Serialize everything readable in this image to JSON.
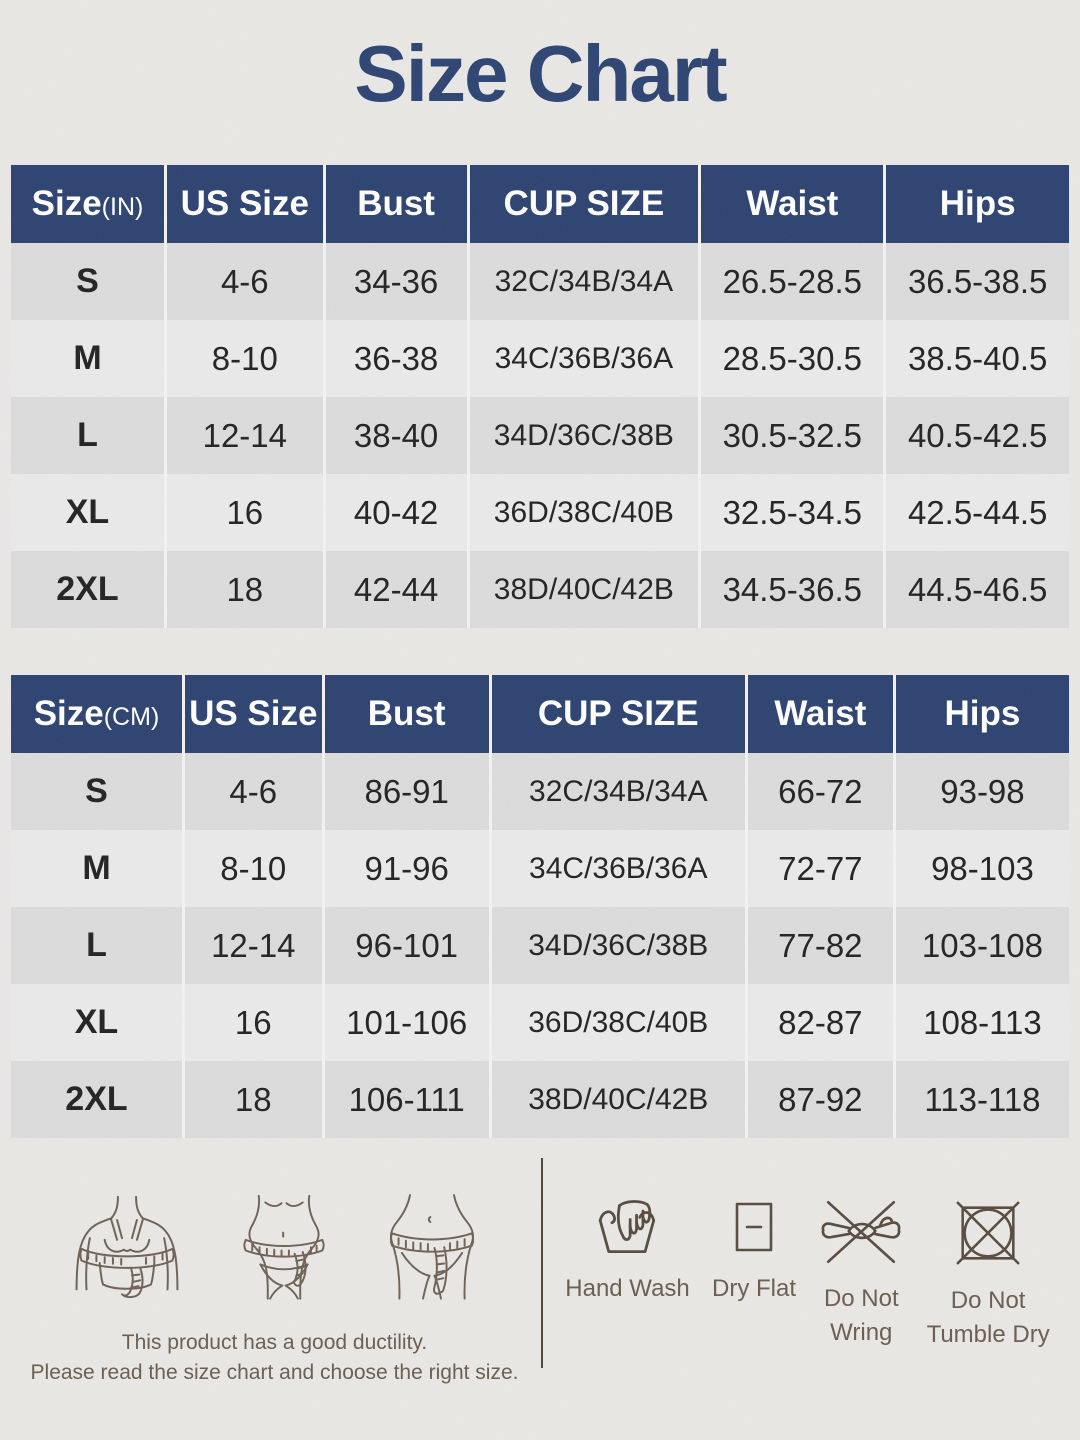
{
  "title": "Size Chart",
  "colors": {
    "navy": "#2d4271",
    "row_dark": "#dcdcdc",
    "row_light": "#eaeaea",
    "line_art_brown": "#6f6154",
    "note_text": "#6b5c4f"
  },
  "tables": [
    {
      "id": "inches",
      "size_col": {
        "label": "Size",
        "unit": "(IN)"
      },
      "columns": [
        "US Size",
        "Bust",
        "CUP SIZE",
        "Waist",
        "Hips"
      ],
      "rows": [
        [
          "S",
          "4-6",
          "34-36",
          "32C/34B/34A",
          "26.5-28.5",
          "36.5-38.5"
        ],
        [
          "M",
          "8-10",
          "36-38",
          "34C/36B/36A",
          "28.5-30.5",
          "38.5-40.5"
        ],
        [
          "L",
          "12-14",
          "38-40",
          "34D/36C/38B",
          "30.5-32.5",
          "40.5-42.5"
        ],
        [
          "XL",
          "16",
          "40-42",
          "36D/38C/40B",
          "32.5-34.5",
          "42.5-44.5"
        ],
        [
          "2XL",
          "18",
          "42-44",
          "38D/40C/42B",
          "34.5-36.5",
          "44.5-46.5"
        ]
      ]
    },
    {
      "id": "centimeters",
      "size_col": {
        "label": "Size",
        "unit": "(CM)"
      },
      "columns": [
        "US Size",
        "Bust",
        "CUP SIZE",
        "Waist",
        "Hips"
      ],
      "rows": [
        [
          "S",
          "4-6",
          "86-91",
          "32C/34B/34A",
          "66-72",
          "93-98"
        ],
        [
          "M",
          "8-10",
          "91-96",
          "34C/36B/36A",
          "72-77",
          "98-103"
        ],
        [
          "L",
          "12-14",
          "96-101",
          "34D/36C/38B",
          "77-82",
          "103-108"
        ],
        [
          "XL",
          "16",
          "101-106",
          "36D/38C/40B",
          "82-87",
          "108-113"
        ],
        [
          "2XL",
          "18",
          "106-111",
          "38D/40C/42B",
          "87-92",
          "113-118"
        ]
      ]
    }
  ],
  "measurement_figures": [
    {
      "icon": "bust-measurement-figure"
    },
    {
      "icon": "waist-measurement-figure"
    },
    {
      "icon": "hips-measurement-figure"
    }
  ],
  "notes": {
    "line1": "This product has a good ductility.",
    "line2": "Please read the size chart and choose the right size."
  },
  "care_instructions": [
    {
      "icon": "hand-wash-icon",
      "label": "Hand Wash"
    },
    {
      "icon": "dry-flat-icon",
      "label": "Dry Flat"
    },
    {
      "icon": "do-not-wring-icon",
      "label": "Do Not\nWring"
    },
    {
      "icon": "do-not-tumble-dry-icon",
      "label": "Do Not\nTumble Dry"
    }
  ]
}
